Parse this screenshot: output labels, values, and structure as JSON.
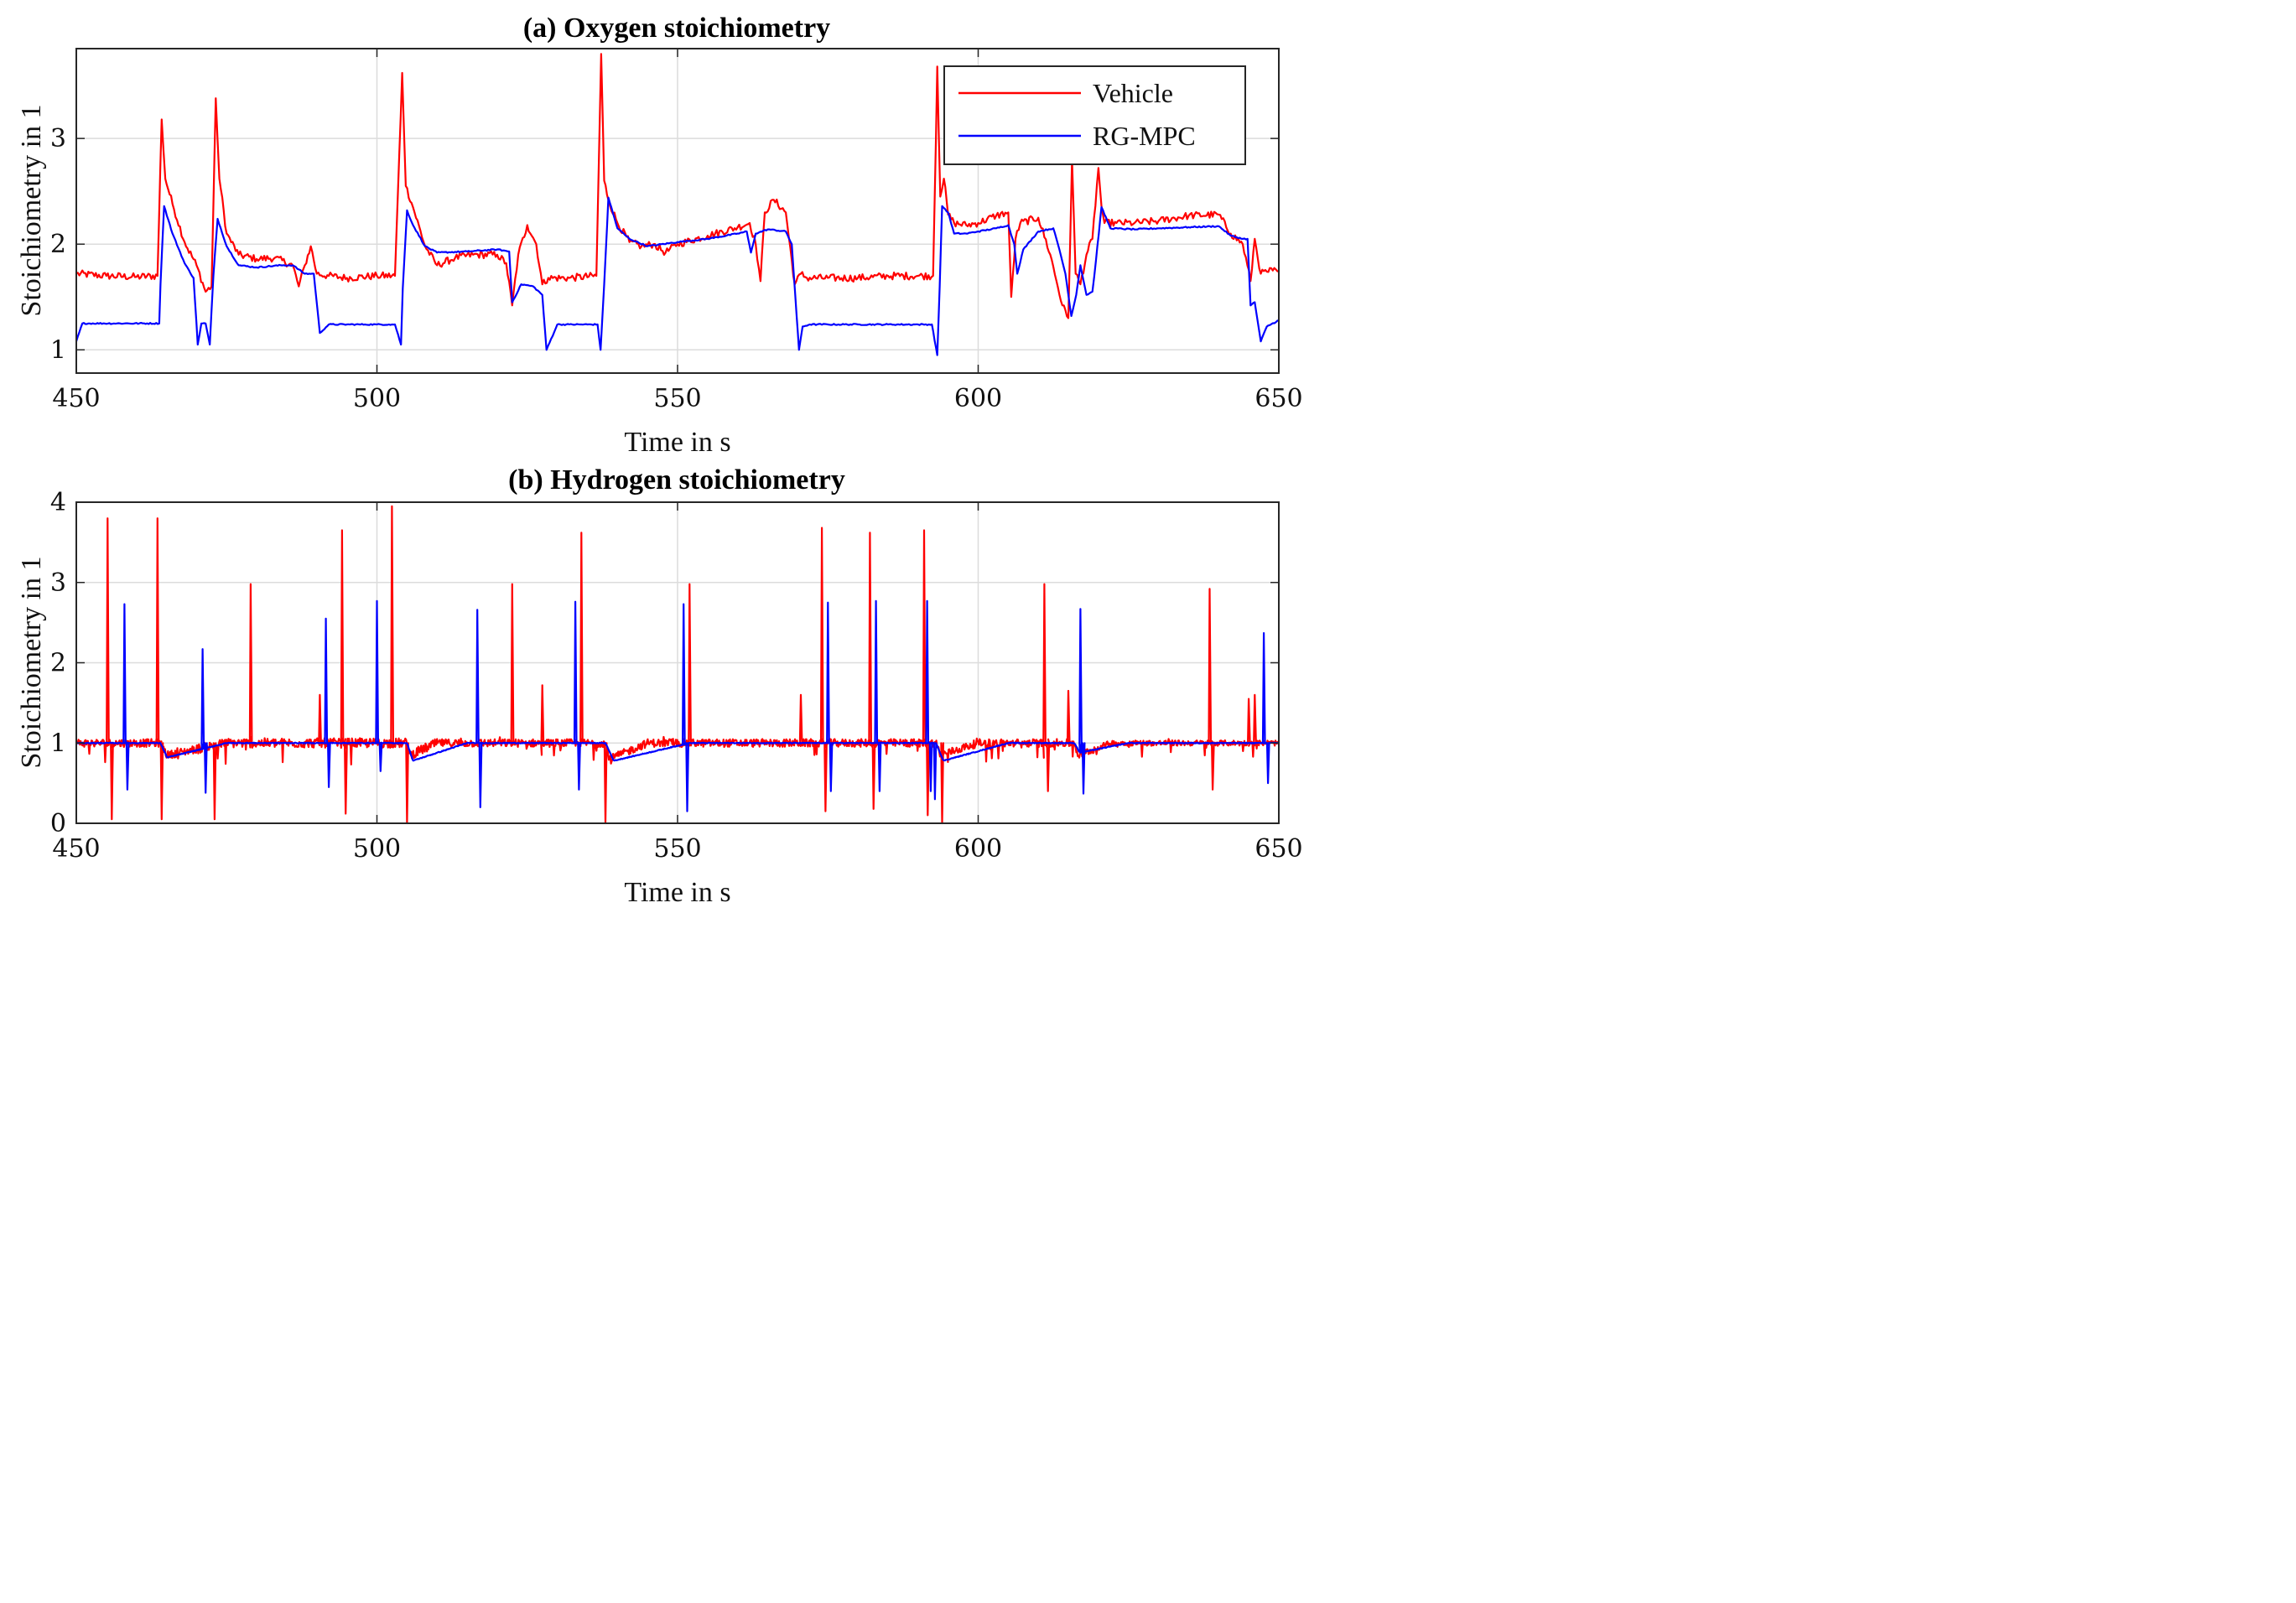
{
  "chart_data": [
    {
      "type": "line",
      "title": "(a) Oxygen stoichiometry",
      "xlabel": "Time in s",
      "ylabel": "Stoichiometry in 1",
      "xlim": [
        450,
        650
      ],
      "ylim": [
        0.78,
        3.85
      ],
      "xticks": [
        450,
        500,
        550,
        600,
        650
      ],
      "yticks": [
        1,
        2,
        3
      ],
      "grid": true,
      "legend": {
        "position": "top-right",
        "entries": [
          "Vehicle",
          "RG-MPC"
        ]
      },
      "series": [
        {
          "name": "Vehicle",
          "color": "#ff0000",
          "x": [
            450,
            455,
            460,
            463.5,
            464.2,
            464.8,
            466,
            468,
            470,
            471.5,
            472.5,
            473.2,
            473.8,
            475,
            477,
            480,
            483,
            486,
            487,
            488,
            489,
            490,
            492,
            495,
            500,
            503,
            504.2,
            504.8,
            506,
            508,
            510,
            513,
            516,
            520,
            521.5,
            522.5,
            523.5,
            525,
            526.5,
            527.5,
            528.5,
            532,
            536.5,
            537.3,
            537.8,
            538.5,
            540,
            542,
            544,
            546,
            548,
            550,
            555,
            560,
            562,
            563,
            563.8,
            564.5,
            566,
            568,
            569.5,
            570.5,
            571.5,
            575,
            580,
            585,
            590,
            592.5,
            593.2,
            593.7,
            594.3,
            595,
            596,
            598,
            600,
            603,
            605,
            605.5,
            606.2,
            607,
            610,
            612,
            614,
            615,
            615.6,
            616.2,
            617,
            618,
            619,
            620,
            620.5,
            621,
            623,
            626,
            630,
            635,
            640,
            642,
            644,
            645.3,
            646,
            647,
            648,
            649,
            650
          ],
          "y": [
            1.72,
            1.7,
            1.69,
            1.7,
            3.18,
            2.62,
            2.38,
            2.02,
            1.8,
            1.55,
            1.6,
            3.38,
            2.62,
            2.1,
            1.9,
            1.86,
            1.87,
            1.8,
            1.6,
            1.8,
            1.98,
            1.72,
            1.7,
            1.68,
            1.7,
            1.7,
            3.62,
            2.55,
            2.35,
            1.98,
            1.8,
            1.87,
            1.9,
            1.9,
            1.82,
            1.42,
            1.9,
            2.18,
            2.0,
            1.62,
            1.68,
            1.68,
            1.7,
            3.8,
            2.6,
            2.42,
            2.2,
            2.02,
            1.98,
            2.0,
            1.92,
            2.0,
            2.08,
            2.16,
            2.2,
            2.0,
            1.65,
            2.3,
            2.42,
            2.3,
            1.62,
            1.72,
            1.68,
            1.68,
            1.68,
            1.7,
            1.7,
            1.7,
            3.68,
            2.45,
            2.62,
            2.28,
            2.2,
            2.18,
            2.2,
            2.27,
            2.3,
            1.5,
            2.05,
            2.2,
            2.25,
            1.9,
            1.42,
            1.3,
            2.8,
            1.72,
            1.62,
            1.9,
            2.05,
            2.72,
            2.36,
            2.2,
            2.2,
            2.2,
            2.22,
            2.27,
            2.28,
            2.1,
            2.0,
            1.65,
            2.05,
            1.72,
            1.74,
            1.75,
            1.74
          ]
        },
        {
          "name": "RG-MPC",
          "color": "#0000ff",
          "x": [
            450,
            451,
            458,
            463.8,
            464,
            464.6,
            466,
            468,
            469.5,
            470.2,
            470.8,
            471.5,
            472.2,
            472.8,
            473.5,
            475,
            477,
            480,
            484,
            486,
            488,
            489.5,
            490.5,
            492,
            495,
            498,
            500,
            502,
            503,
            504,
            504.3,
            505,
            506,
            508,
            510,
            515,
            520,
            522,
            522.5,
            524,
            526,
            527.5,
            528.2,
            530,
            532,
            535,
            536.7,
            537.2,
            537.8,
            538.5,
            540,
            542,
            545,
            550,
            555,
            560,
            561.5,
            562.2,
            563,
            565,
            568,
            569,
            569.8,
            570.2,
            570.8,
            572,
            575,
            580,
            585,
            590,
            592.3,
            593.2,
            593.6,
            594,
            595,
            596,
            598,
            600,
            603,
            605,
            606,
            606.5,
            607.5,
            610,
            612.5,
            613.5,
            614.5,
            615.5,
            616.3,
            617,
            618,
            619,
            619.6,
            620.5,
            622,
            626,
            630,
            635,
            640,
            642,
            644,
            644.8,
            645.3,
            646,
            647,
            648,
            650
          ],
          "y": [
            1.08,
            1.25,
            1.25,
            1.25,
            1.62,
            2.36,
            2.1,
            1.82,
            1.68,
            1.05,
            1.25,
            1.25,
            1.05,
            1.7,
            2.24,
            1.98,
            1.8,
            1.78,
            1.8,
            1.8,
            1.72,
            1.72,
            1.16,
            1.24,
            1.24,
            1.24,
            1.24,
            1.24,
            1.24,
            1.05,
            1.58,
            2.32,
            2.18,
            1.98,
            1.92,
            1.93,
            1.95,
            1.93,
            1.45,
            1.62,
            1.6,
            1.52,
            1.0,
            1.24,
            1.24,
            1.24,
            1.24,
            1.0,
            1.62,
            2.44,
            2.15,
            2.05,
            1.98,
            2.02,
            2.05,
            2.1,
            2.12,
            1.92,
            2.1,
            2.14,
            2.12,
            2.0,
            1.32,
            1.0,
            1.22,
            1.24,
            1.24,
            1.24,
            1.24,
            1.24,
            1.24,
            0.95,
            1.6,
            2.36,
            2.3,
            2.1,
            2.1,
            2.12,
            2.15,
            2.18,
            2.0,
            1.72,
            1.95,
            2.12,
            2.15,
            1.95,
            1.72,
            1.32,
            1.52,
            1.8,
            1.52,
            1.55,
            1.85,
            2.35,
            2.15,
            2.14,
            2.15,
            2.16,
            2.17,
            2.08,
            2.05,
            2.05,
            1.42,
            1.45,
            1.08,
            1.22,
            1.28
          ]
        }
      ]
    },
    {
      "type": "line",
      "title": "(b) Hydrogen stoichiometry",
      "xlabel": "Time in s",
      "ylabel": "Stoichiometry in 1",
      "xlim": [
        450,
        650
      ],
      "ylim": [
        0,
        4
      ],
      "xticks": [
        450,
        500,
        550,
        600,
        650
      ],
      "yticks": [
        0,
        1,
        2,
        3,
        4
      ],
      "grid": true,
      "baseline": 1.0,
      "series": [
        {
          "name": "Vehicle",
          "color": "#ff0000",
          "spikes": [
            [
              455.2,
              3.8
            ],
            [
              455.9,
              0.05
            ],
            [
              463.5,
              3.8
            ],
            [
              464.2,
              0.05
            ],
            [
              473,
              0.05
            ],
            [
              479,
              2.98
            ],
            [
              490.5,
              1.6
            ],
            [
              494.2,
              3.65
            ],
            [
              494.8,
              0.12
            ],
            [
              502.5,
              3.95
            ],
            [
              505,
              0.0
            ],
            [
              522.5,
              2.98
            ],
            [
              527.5,
              1.72
            ],
            [
              534,
              3.62
            ],
            [
              538,
              0.0
            ],
            [
              552,
              2.98
            ],
            [
              570.5,
              1.6
            ],
            [
              574,
              3.68
            ],
            [
              574.6,
              0.15
            ],
            [
              582,
              3.62
            ],
            [
              582.6,
              0.18
            ],
            [
              591,
              3.65
            ],
            [
              591.6,
              0.1
            ],
            [
              594,
              0.0
            ],
            [
              611,
              2.98
            ],
            [
              611.6,
              0.4
            ],
            [
              615,
              1.65
            ],
            [
              638.5,
              2.92
            ],
            [
              639,
              0.42
            ],
            [
              645,
              1.55
            ],
            [
              646,
              1.6
            ]
          ],
          "noise": [
            [
              450,
              470,
              0.1
            ],
            [
              470,
              510,
              0.12
            ],
            [
              510,
              620,
              0.1
            ],
            [
              620,
              650,
              0.07
            ]
          ],
          "dips": [
            [
              464,
              475,
              0.85
            ],
            [
              505,
              510,
              0.85
            ],
            [
              538,
              545,
              0.8
            ],
            [
              593,
              600,
              0.85
            ],
            [
              616,
              622,
              0.85
            ]
          ]
        },
        {
          "name": "RG-MPC",
          "color": "#0000ff",
          "spikes": [
            [
              458,
              2.73
            ],
            [
              458.5,
              0.42
            ],
            [
              471,
              2.17
            ],
            [
              471.5,
              0.38
            ],
            [
              491.5,
              2.55
            ],
            [
              492,
              0.45
            ],
            [
              500,
              2.77
            ],
            [
              500.6,
              0.65
            ],
            [
              516.7,
              2.66
            ],
            [
              517.2,
              0.2
            ],
            [
              533,
              2.76
            ],
            [
              533.6,
              0.42
            ],
            [
              551,
              2.73
            ],
            [
              551.6,
              0.15
            ],
            [
              575,
              2.75
            ],
            [
              575.5,
              0.4
            ],
            [
              583,
              2.77
            ],
            [
              583.6,
              0.4
            ],
            [
              591.5,
              2.77
            ],
            [
              592.1,
              0.4
            ],
            [
              592.8,
              0.3
            ],
            [
              617,
              2.67
            ],
            [
              617.5,
              0.37
            ],
            [
              647.5,
              2.37
            ],
            [
              648.2,
              0.5
            ]
          ],
          "dips": [
            [
              464,
              475,
              0.82
            ],
            [
              505,
              515,
              0.78
            ],
            [
              538,
              552,
              0.78
            ],
            [
              593,
              605,
              0.78
            ],
            [
              616,
              625,
              0.88
            ]
          ]
        }
      ]
    }
  ]
}
